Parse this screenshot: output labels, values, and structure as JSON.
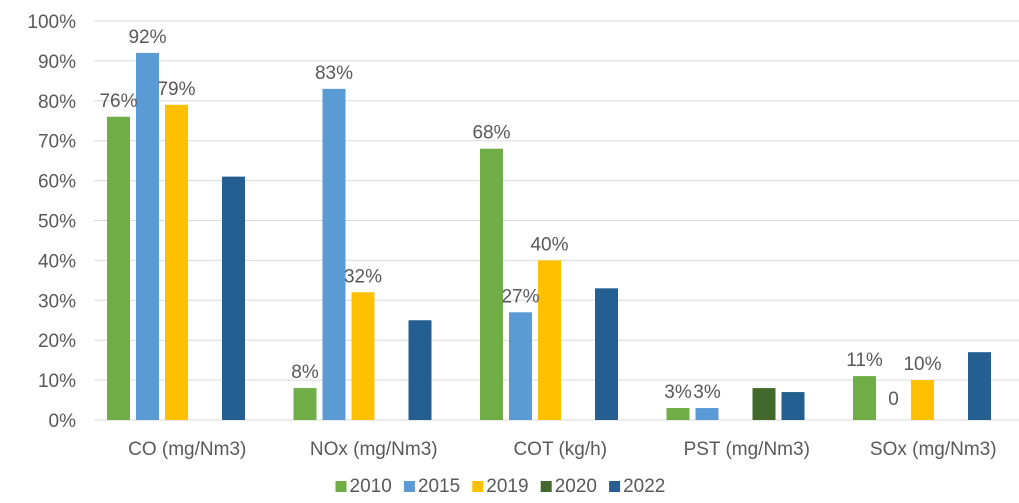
{
  "chart_data": {
    "type": "bar",
    "title": "",
    "xlabel": "",
    "ylabel": "",
    "ylim": [
      0,
      100
    ],
    "y_ticks": [
      "0%",
      "10%",
      "20%",
      "30%",
      "40%",
      "50%",
      "60%",
      "70%",
      "80%",
      "90%",
      "100%"
    ],
    "grid": "horizontal",
    "legend_position": "bottom",
    "categories": [
      "CO (mg/Nm3)",
      "NOx (mg/Nm3)",
      "COT (kg/h)",
      "PST (mg/Nm3)",
      "SOx (mg/Nm3)"
    ],
    "series": [
      {
        "name": "2010",
        "color": "#70ad47",
        "values": [
          76,
          8,
          68,
          3,
          11
        ],
        "labels": [
          "76%",
          "8%",
          "68%",
          "3%",
          "11%"
        ]
      },
      {
        "name": "2015",
        "color": "#5b9bd5",
        "values": [
          92,
          83,
          27,
          3,
          0
        ],
        "labels": [
          "92%",
          "83%",
          "27%",
          "3%",
          "0"
        ]
      },
      {
        "name": "2019",
        "color": "#ffc000",
        "values": [
          79,
          32,
          40,
          null,
          10
        ],
        "labels": [
          "79%",
          "32%",
          "40%",
          "",
          "10%"
        ]
      },
      {
        "name": "2020",
        "color": "#43682b",
        "values": [
          null,
          null,
          null,
          8,
          null
        ],
        "labels": [
          "",
          "",
          "",
          "",
          ""
        ]
      },
      {
        "name": "2022",
        "color": "#255e91",
        "values": [
          61,
          25,
          33,
          7,
          17
        ],
        "labels": [
          "",
          "",
          "",
          "",
          ""
        ]
      }
    ]
  }
}
